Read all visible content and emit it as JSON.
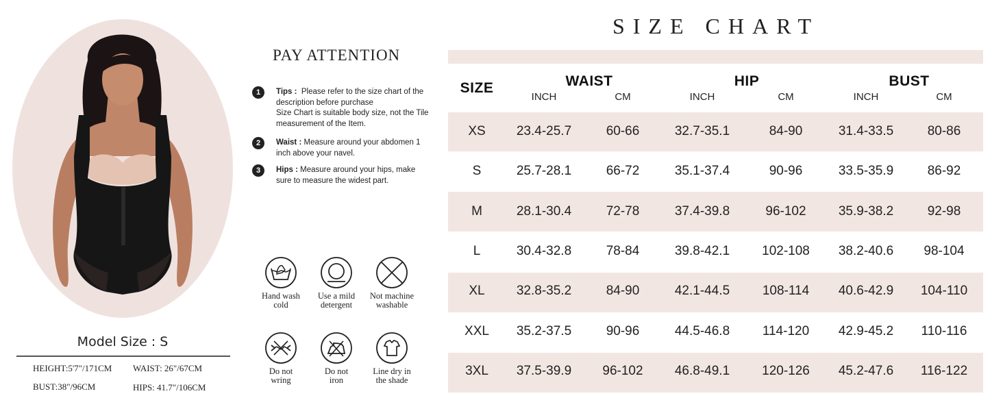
{
  "model": {
    "size_label": "Model Size : S",
    "height": "HEIGHT:5'7\"/171CM",
    "waist": "WAIST: 26\"/67CM",
    "bust": "BUST:38\"/96CM",
    "hips": "HIPS: 41.7\"/106CM"
  },
  "attention": {
    "title": "PAY ATTENTION",
    "tips": [
      {
        "num": "1",
        "label": "Tips :",
        "text": "Please refer to the size chart of the description before purchase",
        "extra": "Size Chart is suitable body size, not the Tile measurement of the Item."
      },
      {
        "num": "2",
        "label": "Waist :",
        "text": "Measure around your abdomen 1 inch above your navel."
      },
      {
        "num": "3",
        "label": "Hips :",
        "text": "Measure around your hips, make sure to measure the widest part."
      }
    ]
  },
  "care": [
    {
      "icon": "hand-wash-icon",
      "line1": "Hand wash",
      "line2": "cold"
    },
    {
      "icon": "mild-detergent-icon",
      "line1": "Use a mild",
      "line2": "detergent"
    },
    {
      "icon": "no-machine-wash-icon",
      "line1": "Not machine",
      "line2": "washable"
    },
    {
      "icon": "do-not-wring-icon",
      "line1": "Do not",
      "line2": "wring"
    },
    {
      "icon": "do-not-iron-icon",
      "line1": "Do not",
      "line2": "iron"
    },
    {
      "icon": "line-dry-shade-icon",
      "line1": "Line dry in",
      "line2": "the shade"
    }
  ],
  "chart": {
    "title": "SIZE CHART",
    "size_header": "SIZE",
    "groups": [
      {
        "name": "WAIST",
        "sub1": "INCH",
        "sub2": "CM"
      },
      {
        "name": "HIP",
        "sub1": "INCH",
        "sub2": "CM"
      },
      {
        "name": "BUST",
        "sub1": "INCH",
        "sub2": "CM"
      }
    ],
    "rows": [
      [
        "XS",
        "23.4-25.7",
        "60-66",
        "32.7-35.1",
        "84-90",
        "31.4-33.5",
        "80-86"
      ],
      [
        "S",
        "25.7-28.1",
        "66-72",
        "35.1-37.4",
        "90-96",
        "33.5-35.9",
        "86-92"
      ],
      [
        "M",
        "28.1-30.4",
        "72-78",
        "37.4-39.8",
        "96-102",
        "35.9-38.2",
        "92-98"
      ],
      [
        "L",
        "30.4-32.8",
        "78-84",
        "39.8-42.1",
        "102-108",
        "38.2-40.6",
        "98-104"
      ],
      [
        "XL",
        "32.8-35.2",
        "84-90",
        "42.1-44.5",
        "108-114",
        "40.6-42.9",
        "104-110"
      ],
      [
        "XXL",
        "35.2-37.5",
        "90-96",
        "44.5-46.8",
        "114-120",
        "42.9-45.2",
        "110-116"
      ],
      [
        "3XL",
        "37.5-39.9",
        "96-102",
        "46.8-49.1",
        "120-126",
        "45.2-47.6",
        "116-122"
      ]
    ]
  }
}
